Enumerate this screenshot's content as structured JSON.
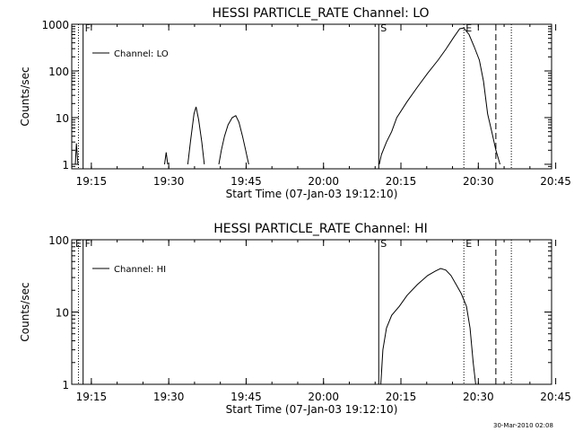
{
  "chart_data": [
    {
      "type": "line",
      "title": "HESSI PARTICLE_RATE Channel: LO",
      "xlabel": "Start Time (07-Jan-03 19:12:10)",
      "ylabel": "Counts/sec",
      "y_scale": "log",
      "xlim_minutes": [
        19.0,
        112.0
      ],
      "ylim": [
        0.8,
        1000
      ],
      "x_ticks": [
        {
          "t": 22.8,
          "label": "19:15"
        },
        {
          "t": 37.8,
          "label": "19:30"
        },
        {
          "t": 52.8,
          "label": "19:45"
        },
        {
          "t": 67.8,
          "label": "20:00"
        },
        {
          "t": 82.8,
          "label": "20:15"
        },
        {
          "t": 97.8,
          "label": "20:30"
        },
        {
          "t": 112.8,
          "label": "20:45"
        }
      ],
      "y_ticks": [
        {
          "v": 1,
          "label": "1"
        },
        {
          "v": 10,
          "label": "10"
        },
        {
          "v": 100,
          "label": "100"
        },
        {
          "v": 1000,
          "label": "1000"
        }
      ],
      "legend": {
        "label": "Channel: LO",
        "placement": "top-left"
      },
      "markers": [
        {
          "t": 20.3,
          "label": "",
          "style": "dotted"
        },
        {
          "t": 21.2,
          "label": "F",
          "style": "solid"
        },
        {
          "t": 78.5,
          "label": "S",
          "style": "solid"
        },
        {
          "t": 95.0,
          "label": "E",
          "style": "dotted"
        },
        {
          "t": 101.2,
          "label": "",
          "style": "dashed"
        },
        {
          "t": 104.2,
          "label": "",
          "style": "dotted"
        }
      ],
      "series": [
        {
          "segments": [
            [
              [
                19.7,
                1
              ],
              [
                19.9,
                2.8
              ],
              [
                20.2,
                1
              ]
            ],
            [
              [
                37.0,
                1
              ],
              [
                37.3,
                1.8
              ],
              [
                37.6,
                1
              ]
            ],
            [
              [
                41.5,
                1
              ],
              [
                42.0,
                3
              ],
              [
                42.7,
                12
              ],
              [
                43.1,
                17
              ],
              [
                43.6,
                9
              ],
              [
                44.2,
                3
              ],
              [
                44.7,
                1
              ]
            ],
            [
              [
                47.5,
                1
              ],
              [
                48.0,
                2
              ],
              [
                48.6,
                4
              ],
              [
                49.3,
                7
              ],
              [
                50.1,
                10
              ],
              [
                50.8,
                11
              ],
              [
                51.4,
                8
              ],
              [
                52.1,
                4
              ],
              [
                52.7,
                2
              ],
              [
                53.3,
                1
              ]
            ],
            [
              [
                78.6,
                1
              ],
              [
                79.0,
                1.6
              ],
              [
                80.0,
                3
              ],
              [
                81.0,
                5
              ],
              [
                82.0,
                10
              ],
              [
                84.0,
                22
              ],
              [
                86.0,
                45
              ],
              [
                88.0,
                90
              ],
              [
                90.0,
                170
              ],
              [
                91.5,
                290
              ],
              [
                93.0,
                520
              ],
              [
                94.2,
                800
              ],
              [
                95.0,
                830
              ],
              [
                96.0,
                600
              ],
              [
                97.0,
                330
              ],
              [
                98.0,
                170
              ],
              [
                98.8,
                60
              ],
              [
                99.6,
                12
              ],
              [
                100.4,
                5
              ],
              [
                101.2,
                2
              ],
              [
                102.0,
                1
              ]
            ]
          ]
        }
      ]
    },
    {
      "type": "line",
      "title": "HESSI PARTICLE_RATE Channel: HI",
      "xlabel": "Start Time (07-Jan-03 19:12:10)",
      "ylabel": "Counts/sec",
      "y_scale": "log",
      "xlim_minutes": [
        19.0,
        112.0
      ],
      "ylim": [
        1,
        100
      ],
      "x_ticks": [
        {
          "t": 22.8,
          "label": "19:15"
        },
        {
          "t": 37.8,
          "label": "19:30"
        },
        {
          "t": 52.8,
          "label": "19:45"
        },
        {
          "t": 67.8,
          "label": "20:00"
        },
        {
          "t": 82.8,
          "label": "20:15"
        },
        {
          "t": 97.8,
          "label": "20:30"
        },
        {
          "t": 112.8,
          "label": "20:45"
        }
      ],
      "y_ticks": [
        {
          "v": 1,
          "label": "1"
        },
        {
          "v": 10,
          "label": "10"
        },
        {
          "v": 100,
          "label": "100"
        }
      ],
      "legend": {
        "label": "Channel: HI",
        "placement": "top-left"
      },
      "markers": [
        {
          "t": 0,
          "label": "E",
          "style": "none"
        },
        {
          "t": 20.3,
          "label": "",
          "style": "dotted"
        },
        {
          "t": 21.2,
          "label": "F",
          "style": "solid"
        },
        {
          "t": 78.5,
          "label": "S",
          "style": "solid"
        },
        {
          "t": 95.0,
          "label": "E",
          "style": "dotted"
        },
        {
          "t": 101.2,
          "label": "",
          "style": "dashed"
        },
        {
          "t": 104.2,
          "label": "",
          "style": "dotted"
        }
      ],
      "series": [
        {
          "segments": [
            [
              [
                78.9,
                1
              ],
              [
                79.3,
                3
              ],
              [
                80.0,
                6
              ],
              [
                81.0,
                9
              ],
              [
                82.5,
                12
              ],
              [
                84.0,
                17
              ],
              [
                86.0,
                24
              ],
              [
                88.0,
                32
              ],
              [
                89.5,
                37
              ],
              [
                90.5,
                40
              ],
              [
                91.5,
                38
              ],
              [
                92.5,
                32
              ],
              [
                93.5,
                24
              ],
              [
                94.5,
                18
              ],
              [
                95.5,
                12
              ],
              [
                96.2,
                6
              ],
              [
                96.8,
                2
              ],
              [
                97.3,
                1
              ]
            ]
          ]
        }
      ]
    }
  ],
  "footer": {
    "timestamp": "30-Mar-2010 02:08"
  }
}
